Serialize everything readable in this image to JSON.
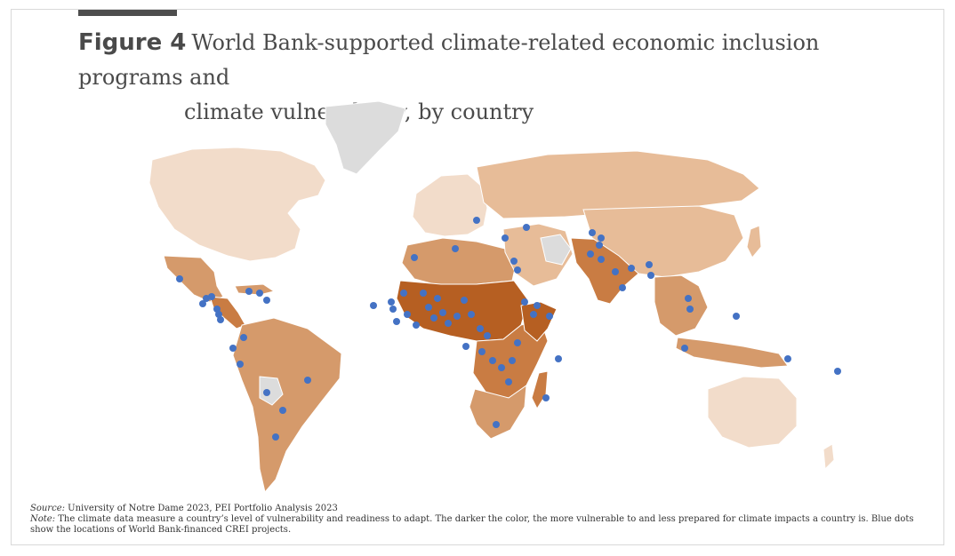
{
  "figure": {
    "label": "Figure 4",
    "title_line1": "World Bank-supported climate-related economic inclusion programs and",
    "title_line2": "climate vulnerability, by country"
  },
  "notes": {
    "source_label": "Source:",
    "source_text": " University of Notre Dame 2023, PEI Portfolio Analysis 2023",
    "note_label": "Note:",
    "note_text": " The climate data measure a country’s level of vulnerability and readiness to adapt. The darker the color, the more vulnerable to and less prepared for climate impacts a country is. Blue dots show the locations of World Bank-financed CREI projects."
  },
  "colors": {
    "very_low": "#f2dcca",
    "low": "#e7bc98",
    "medium": "#d59a6b",
    "high": "#c97c43",
    "very_high": "#b65f22",
    "no_data": "#dcdcdc",
    "project_dot": "#4472c4"
  }
}
